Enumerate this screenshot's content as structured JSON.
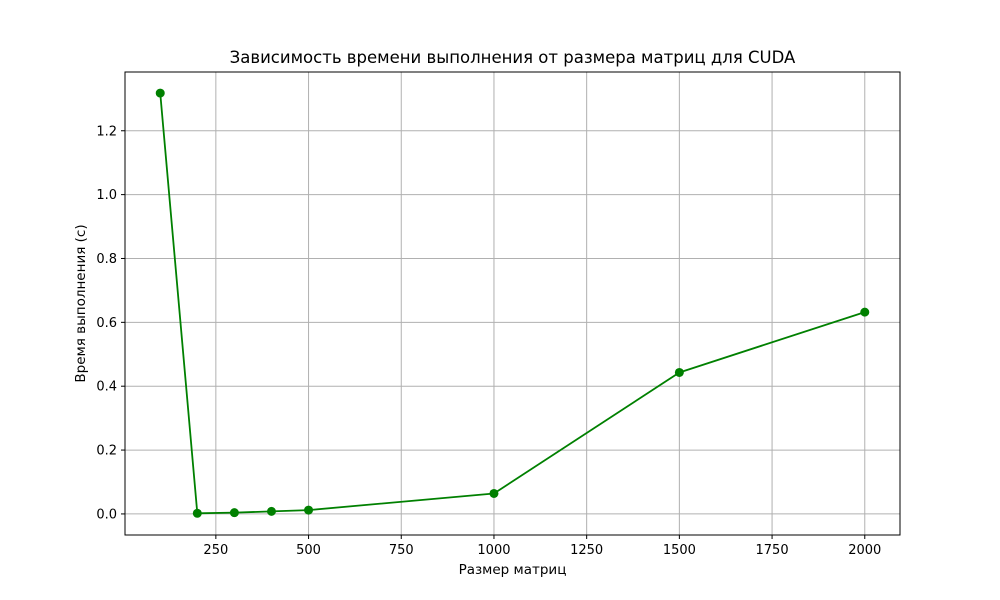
{
  "chart_data": {
    "type": "line",
    "title": "Зависимость времени выполнения от размера матриц для CUDA",
    "xlabel": "Размер матриц",
    "ylabel": "Время выполнения (с)",
    "x": [
      100,
      200,
      300,
      400,
      500,
      1000,
      1500,
      2000
    ],
    "series": [
      {
        "values": [
          1.318,
          0.002,
          0.004,
          0.008,
          0.012,
          0.064,
          0.443,
          0.632
        ],
        "color": "#008000",
        "marker": "circle"
      }
    ],
    "xlim": [
      5,
      2095
    ],
    "ylim": [
      -0.066,
      1.384
    ],
    "xticks": [
      250,
      500,
      750,
      1000,
      1250,
      1500,
      1750,
      2000
    ],
    "xtick_labels": [
      "250",
      "500",
      "750",
      "1000",
      "1250",
      "1500",
      "1750",
      "2000"
    ],
    "yticks": [
      0.0,
      0.2,
      0.4,
      0.6,
      0.8,
      1.0,
      1.2
    ],
    "ytick_labels": [
      "0.0",
      "0.2",
      "0.4",
      "0.6",
      "0.8",
      "1.0",
      "1.2"
    ],
    "grid": true,
    "grid_color": "#b0b0b0",
    "legend": false
  }
}
